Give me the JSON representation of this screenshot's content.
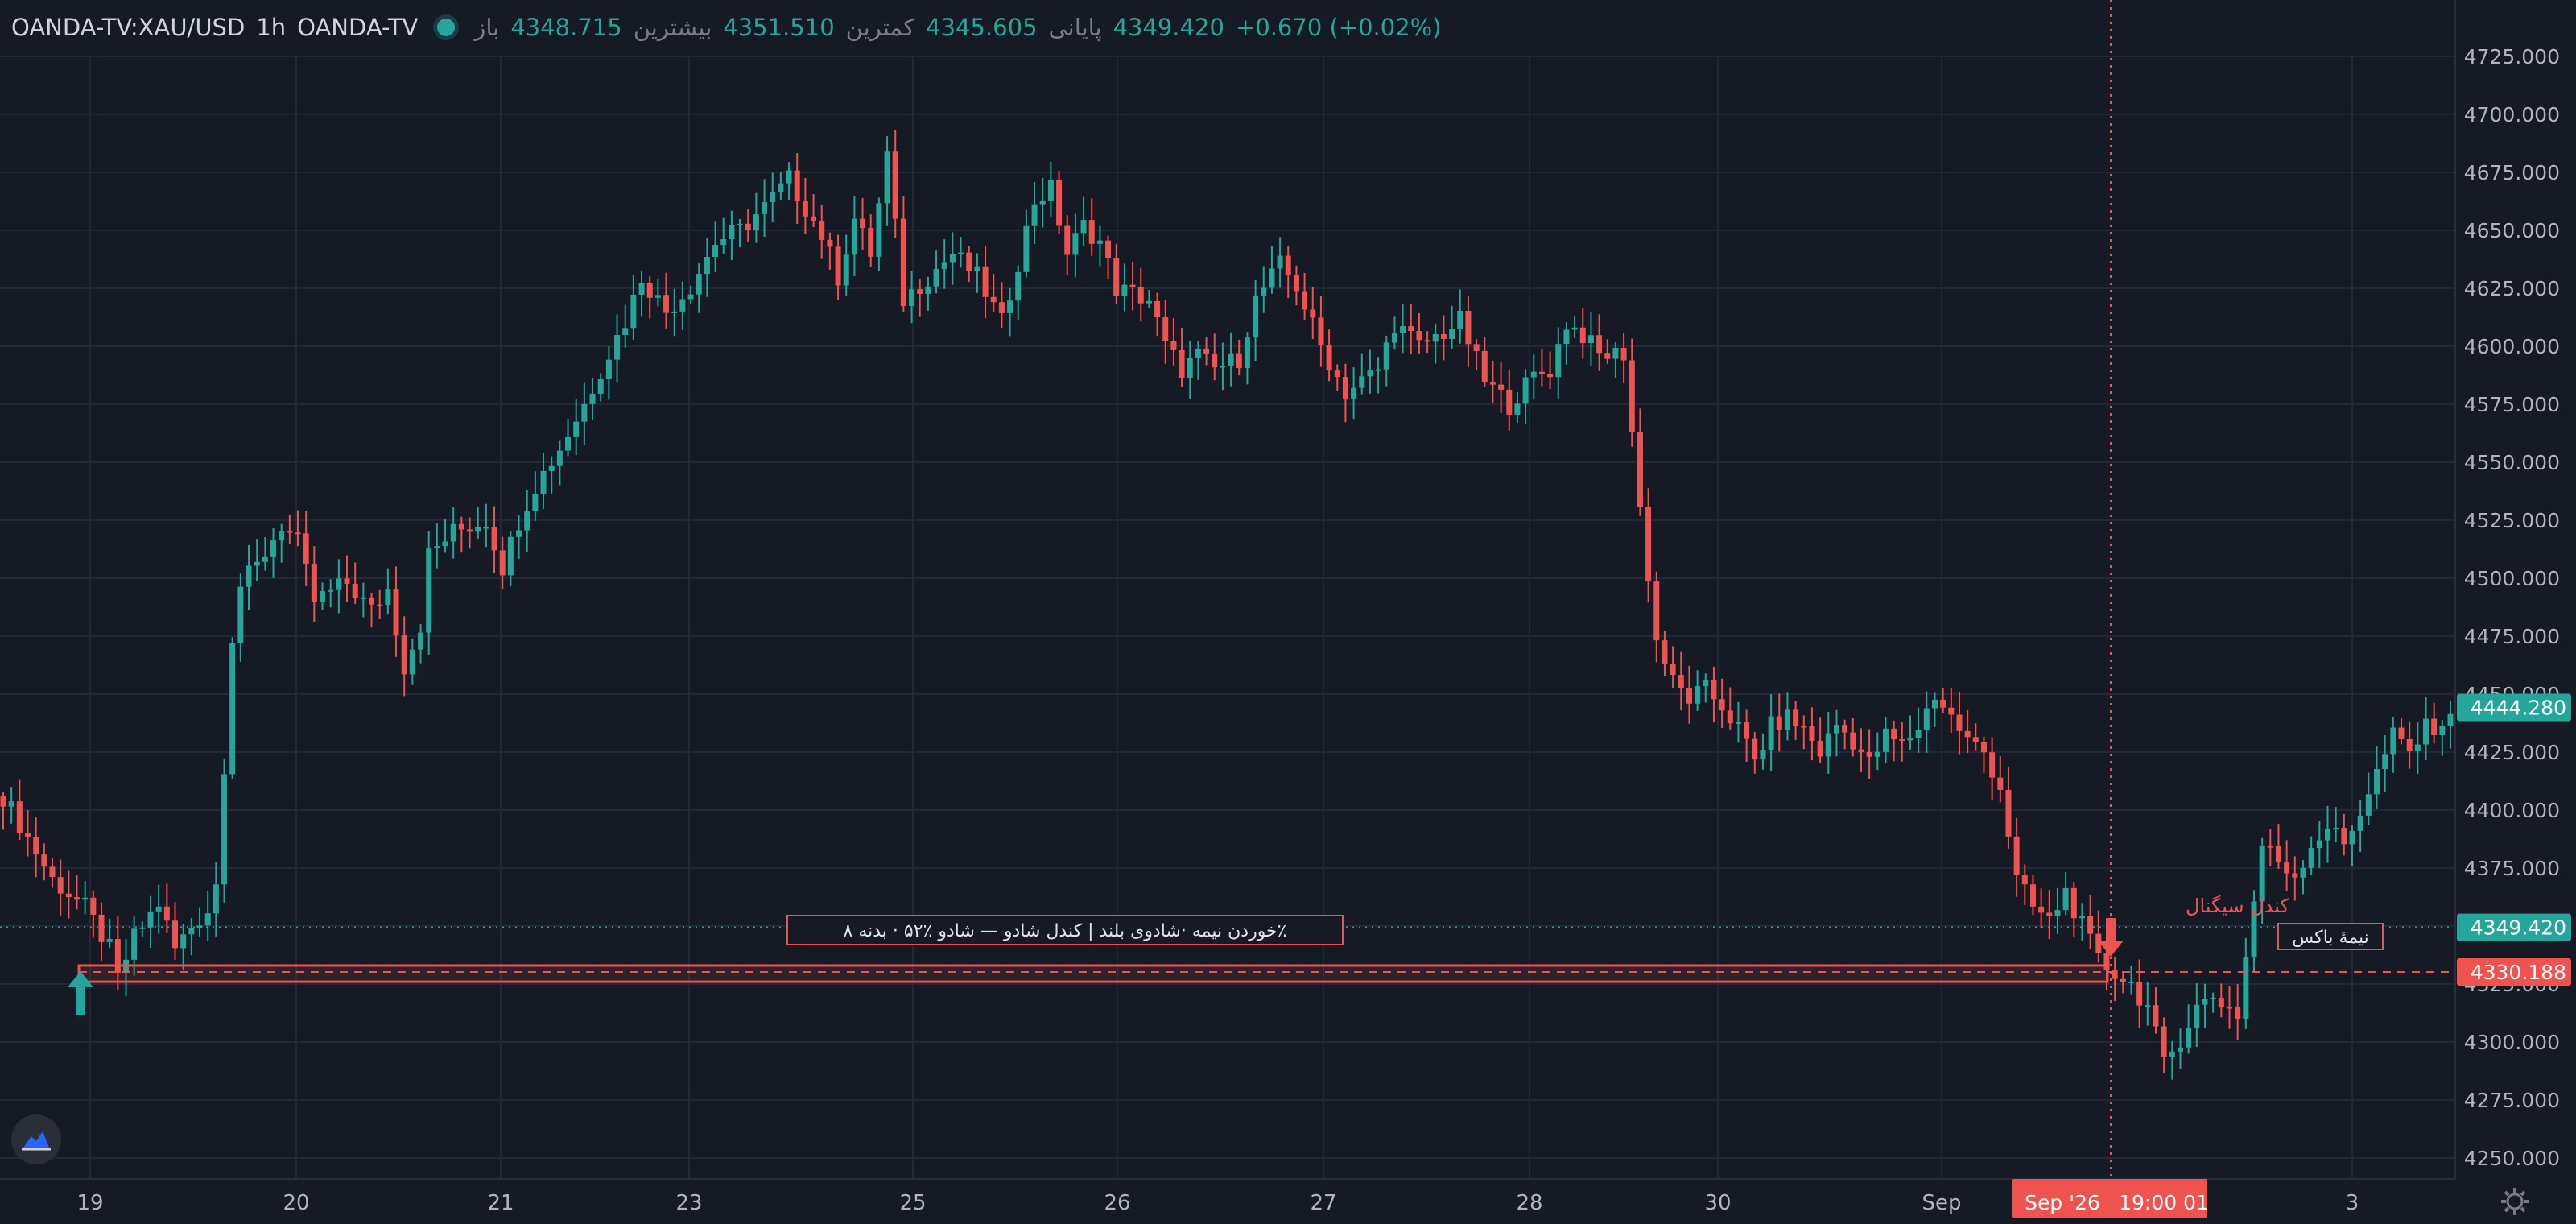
{
  "header": {
    "symbol": "OANDA-TV:XAU/USD",
    "interval": "1h",
    "source": "OANDA-TV",
    "open_label": "باز",
    "open_value": "4348.715",
    "high_label": "بیشترین",
    "high_value": "4351.510",
    "low_label": "کمترین",
    "low_value": "4345.605",
    "close_label": "پایانی",
    "close_value": "4349.420",
    "change": "+0.670 (+0.02%)"
  },
  "colors": {
    "background": "#161a25",
    "up": "#26a69a",
    "down": "#ef5350",
    "grid": "#232838",
    "text": "#b2b5be"
  },
  "icons": [
    "tradingview-logo-icon",
    "settings-gear-icon",
    "arrow-up-icon",
    "arrow-down-icon"
  ],
  "chart_data": {
    "type": "candlestick",
    "y_ticks": [
      "4725.000",
      "4700.000",
      "4675.000",
      "4650.000",
      "4625.000",
      "4600.000",
      "4575.000",
      "4550.000",
      "4525.000",
      "4500.000",
      "4475.000",
      "4450.000",
      "4425.000",
      "4400.000",
      "4375.000",
      "4350.000",
      "4325.000",
      "4300.000",
      "4275.000",
      "4250.000"
    ],
    "x_ticks": [
      "19",
      "20",
      "21",
      "23",
      "25",
      "26",
      "27",
      "28",
      "30",
      "Sep",
      "3"
    ],
    "ylim": [
      4240,
      4735
    ],
    "grid": true,
    "close_series": [
      [
        0,
        4406
      ],
      [
        6,
        4370
      ],
      [
        10,
        4358
      ],
      [
        13,
        4340
      ],
      [
        14,
        4327
      ],
      [
        16,
        4345
      ],
      [
        19,
        4360
      ],
      [
        21,
        4340
      ],
      [
        23,
        4350
      ],
      [
        25,
        4357
      ],
      [
        26,
        4368
      ],
      [
        27,
        4420
      ],
      [
        28,
        4475
      ],
      [
        29,
        4497
      ],
      [
        31,
        4505
      ],
      [
        34,
        4523
      ],
      [
        36,
        4515
      ],
      [
        38,
        4490
      ],
      [
        42,
        4498
      ],
      [
        45,
        4486
      ],
      [
        47,
        4495
      ],
      [
        49,
        4462
      ],
      [
        51,
        4480
      ],
      [
        52,
        4510
      ],
      [
        55,
        4520
      ],
      [
        59,
        4525
      ],
      [
        61,
        4505
      ],
      [
        63,
        4525
      ],
      [
        65,
        4540
      ],
      [
        68,
        4556
      ],
      [
        71,
        4575
      ],
      [
        73,
        4590
      ],
      [
        76,
        4611
      ],
      [
        78,
        4630
      ],
      [
        81,
        4615
      ],
      [
        84,
        4626
      ],
      [
        87,
        4645
      ],
      [
        90,
        4650
      ],
      [
        93,
        4660
      ],
      [
        96,
        4672
      ],
      [
        98,
        4660
      ],
      [
        100,
        4648
      ],
      [
        102,
        4630
      ],
      [
        104,
        4655
      ],
      [
        106,
        4640
      ],
      [
        108,
        4682
      ],
      [
        110,
        4620
      ],
      [
        113,
        4630
      ],
      [
        116,
        4640
      ],
      [
        119,
        4630
      ],
      [
        122,
        4610
      ],
      [
        126,
        4663
      ],
      [
        128,
        4668
      ],
      [
        130,
        4640
      ],
      [
        132,
        4652
      ],
      [
        134,
        4645
      ],
      [
        136,
        4625
      ],
      [
        140,
        4620
      ],
      [
        142,
        4600
      ],
      [
        144,
        4590
      ],
      [
        146,
        4596
      ],
      [
        148,
        4590
      ],
      [
        151,
        4595
      ],
      [
        153,
        4620
      ],
      [
        156,
        4635
      ],
      [
        158,
        4626
      ],
      [
        161,
        4600
      ],
      [
        164,
        4580
      ],
      [
        166,
        4585
      ],
      [
        168,
        4590
      ],
      [
        170,
        4610
      ],
      [
        173,
        4600
      ],
      [
        176,
        4606
      ],
      [
        178,
        4611
      ],
      [
        181,
        4585
      ],
      [
        184,
        4575
      ],
      [
        187,
        4587
      ],
      [
        189,
        4590
      ],
      [
        191,
        4610
      ],
      [
        193,
        4605
      ],
      [
        195,
        4596
      ],
      [
        198,
        4597
      ],
      [
        200,
        4530
      ],
      [
        202,
        4473
      ],
      [
        204,
        4455
      ],
      [
        206,
        4448
      ],
      [
        208,
        4452
      ],
      [
        210,
        4445
      ],
      [
        212,
        4435
      ],
      [
        214,
        4421
      ],
      [
        216,
        4436
      ],
      [
        218,
        4440
      ],
      [
        220,
        4435
      ],
      [
        222,
        4425
      ],
      [
        224,
        4437
      ],
      [
        226,
        4430
      ],
      [
        228,
        4420
      ],
      [
        230,
        4432
      ],
      [
        232,
        4428
      ],
      [
        234,
        4436
      ],
      [
        236,
        4450
      ],
      [
        238,
        4440
      ],
      [
        240,
        4430
      ],
      [
        242,
        4425
      ],
      [
        244,
        4410
      ],
      [
        246,
        4370
      ],
      [
        248,
        4358
      ],
      [
        250,
        4352
      ],
      [
        252,
        4365
      ],
      [
        254,
        4350
      ],
      [
        256,
        4335
      ],
      [
        258,
        4330
      ],
      [
        260,
        4325
      ],
      [
        262,
        4315
      ],
      [
        264,
        4290
      ],
      [
        266,
        4302
      ],
      [
        268,
        4315
      ],
      [
        270,
        4320
      ],
      [
        273,
        4312
      ],
      [
        276,
        4385
      ],
      [
        278,
        4378
      ],
      [
        280,
        4372
      ],
      [
        282,
        4385
      ],
      [
        284,
        4393
      ],
      [
        286,
        4385
      ],
      [
        288,
        4400
      ],
      [
        290,
        4416
      ],
      [
        292,
        4432
      ],
      [
        294,
        4425
      ],
      [
        296,
        4435
      ],
      [
        298,
        4438
      ]
    ],
    "last_price": "4444.280",
    "current_price": "4349.420",
    "level_price": "4330.188",
    "level_value": 4330.188,
    "zone_top": 4333,
    "zone_bottom": 4326,
    "current_value": 4349.42,
    "annotations": {
      "zone_label": "٪خوردن نیمه ·شادوی بلند | کندل شادو — شادو ٪۵۲ · بدنه ۸",
      "signal_label": "کندل سیگنال",
      "box_label": "نیمهٔ باکس"
    },
    "crosshair": {
      "date": "Sep '26",
      "time": "19:00 01"
    }
  }
}
